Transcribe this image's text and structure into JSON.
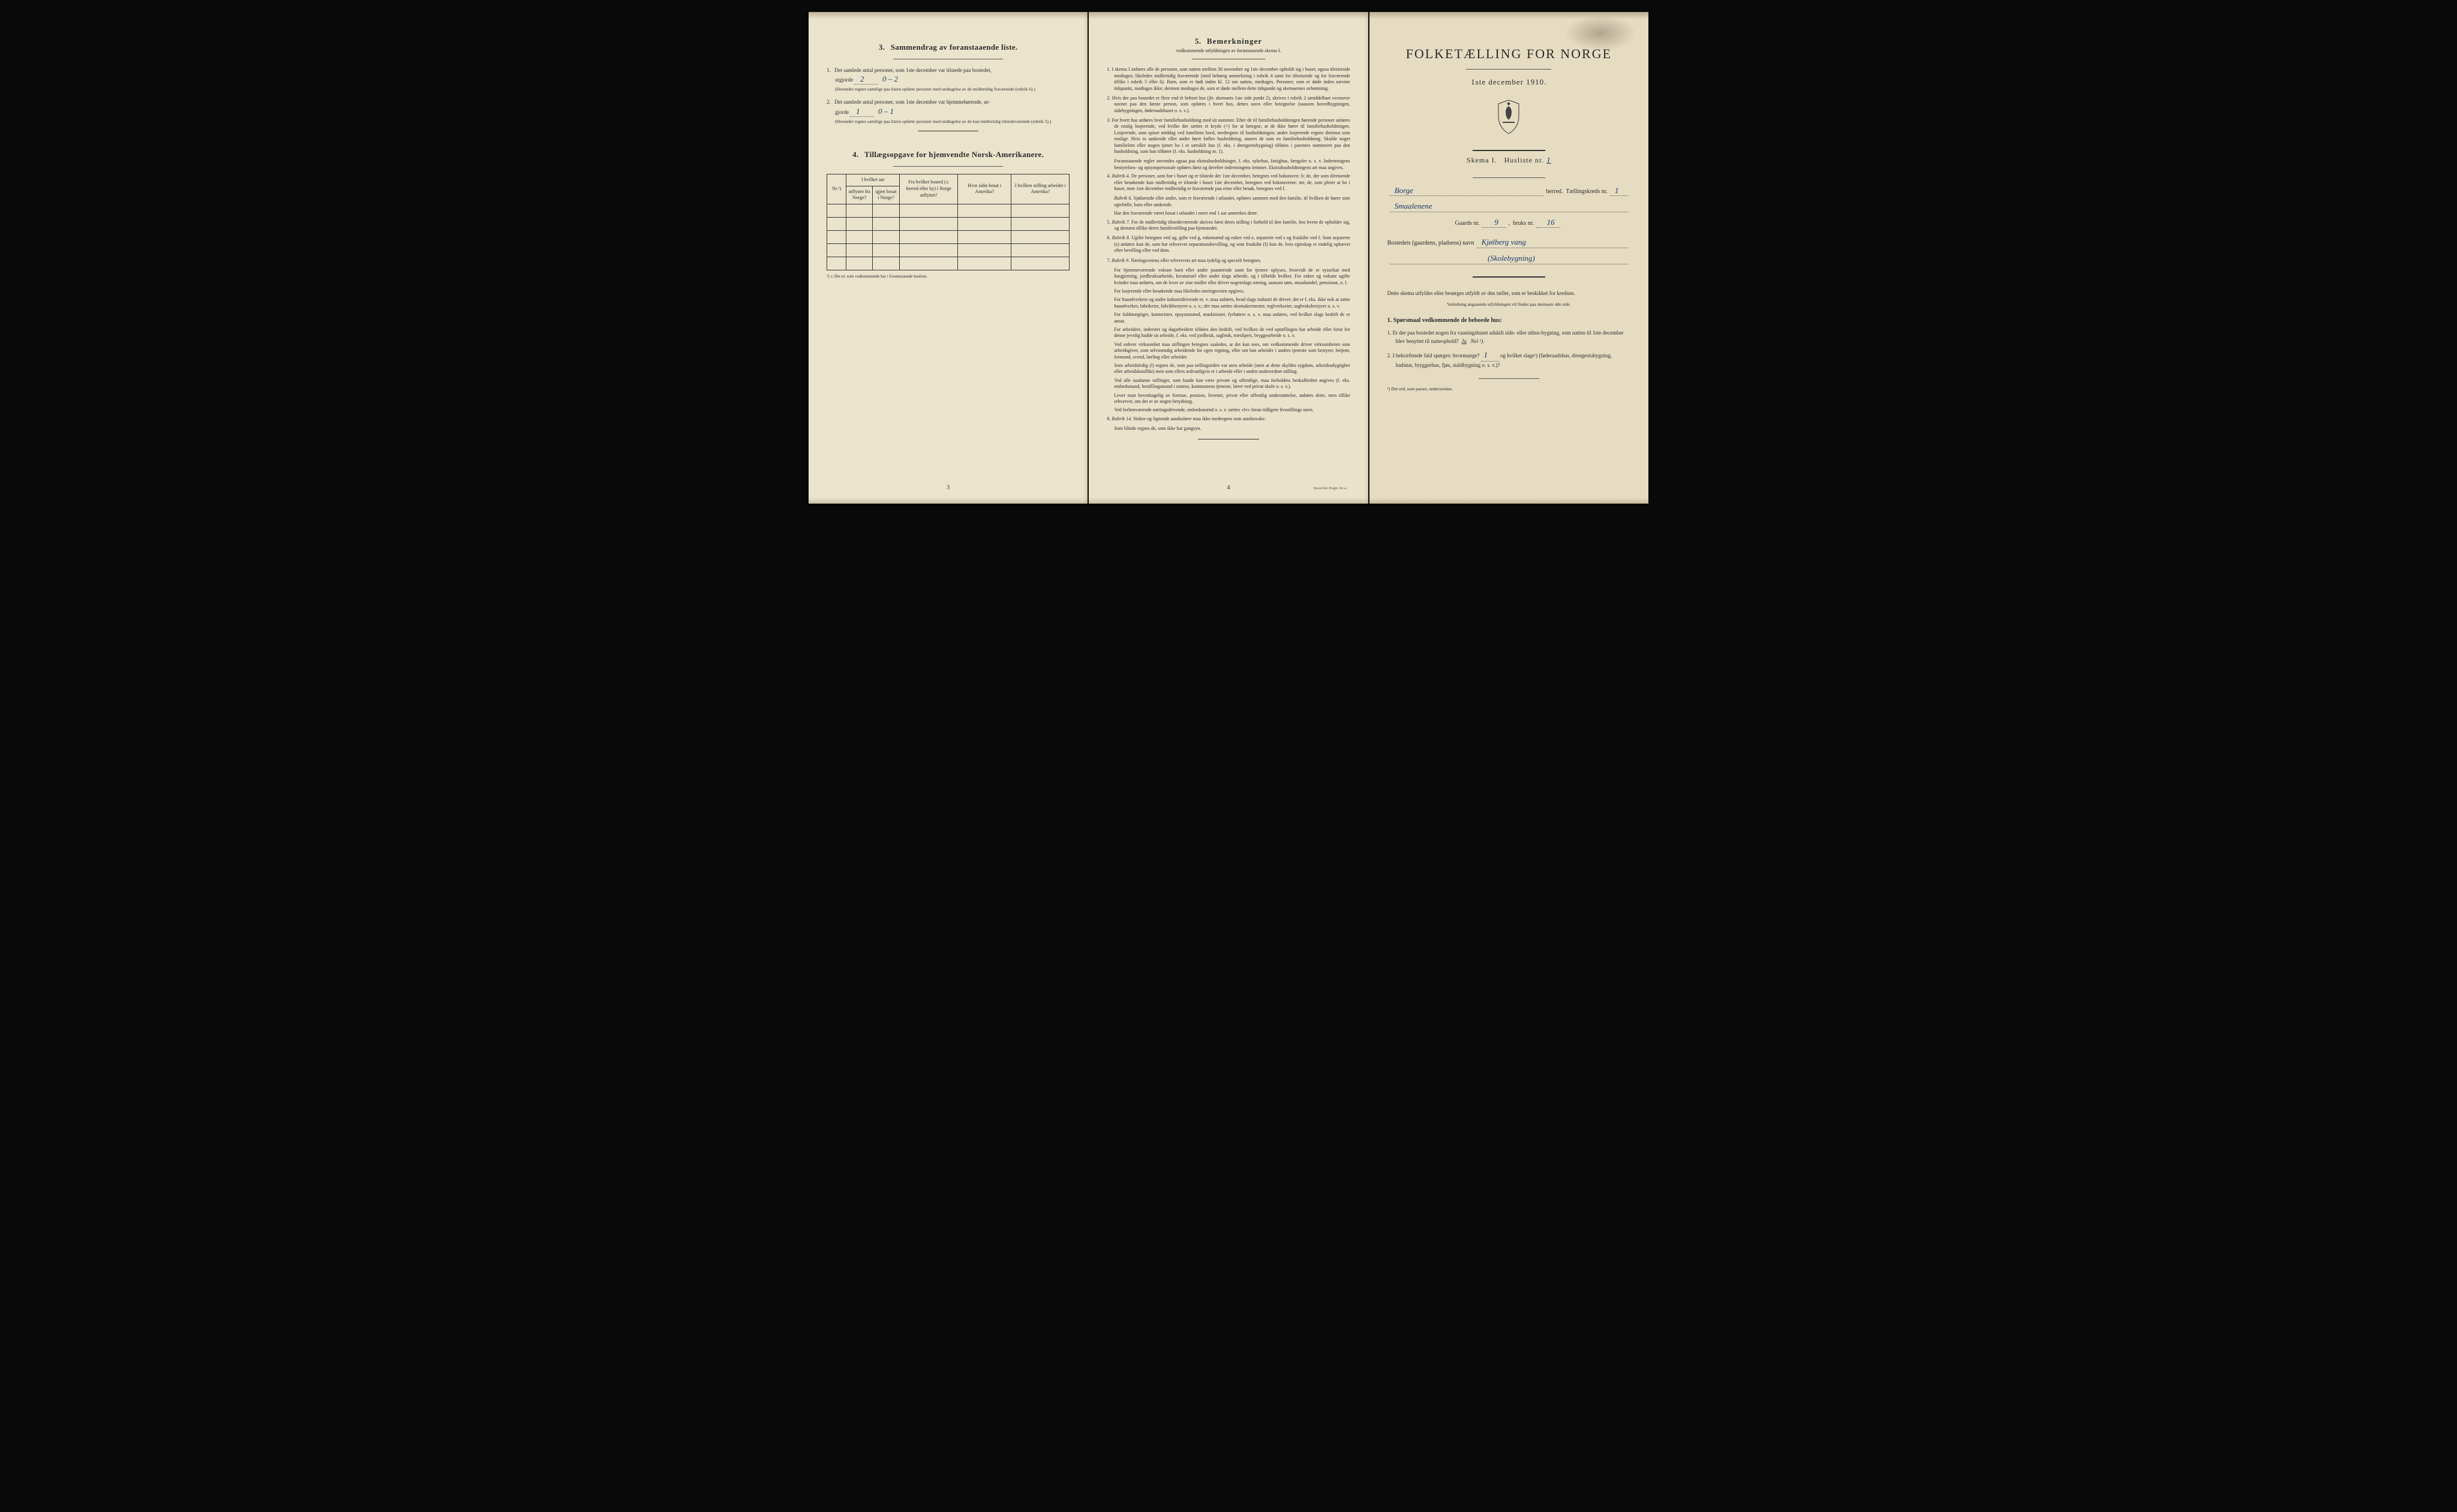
{
  "page1": {
    "section3": {
      "number": "3.",
      "title": "Sammendrag av foranstaaende liste.",
      "item1": {
        "num": "1.",
        "text_a": "Det samlede antal personer, som 1ste december var tilstede paa bostedet,",
        "text_b": "utgjorde",
        "value": "2",
        "extra": "0 – 2",
        "note": "(Herunder regnes samtlige paa listen opførte personer med undtagelse av de midlertidig fraværende (rubrik 6).)"
      },
      "item2": {
        "num": "2.",
        "text_a": "Det samlede antal personer, som 1ste december var hjemmehørende, ut-",
        "text_b": "gjorde",
        "value": "1",
        "extra": "0 – 1",
        "note": "(Herunder regnes samtlige paa listen opførte personer med undtagelse av de kun midlertidig tilstedeværende (rubrik 5).)"
      }
    },
    "section4": {
      "number": "4.",
      "title": "Tillægsopgave for hjemvendte Norsk-Amerikanere.",
      "table": {
        "header1": "Nr.¹)",
        "header2": "I hvilket aar",
        "header2a": "utflyttet fra Norge?",
        "header2b": "igjen bosat i Norge?",
        "header3": "Fra hvilket bosted (ɔ: herred eller by) i Norge utflyttet?",
        "header4": "Hvor sidst bosat i Amerika?",
        "header5": "I hvilken stilling arbeidet i Amerika?"
      },
      "footnote": "¹) ɔ: Det nr. som vedkommende har i foranstaaende husliste."
    },
    "page_num": "3"
  },
  "page2": {
    "section5": {
      "number": "5.",
      "title": "Bemerkninger",
      "subtitle": "vedkommende utfyldningen av foranstaaende skema I."
    },
    "items": [
      {
        "num": "1.",
        "text": "I skema I anføres alle de personer, som natten mellem 30 november og 1ste december opholdt sig i huset; ogsaa tilreisende medtages; likeledes midlertidig fraværende (med behørig anmerkning i rubrik 4 samt for tilreisende og for fraværende tillike i rubrik 5 eller 6). Barn, som er født inden kl. 12 om natten, medtages. Personer, som er døde inden nævnte tidspunkt, medtages ikke; derimot medtages de, som er døde mellem dette tidspunkt og skemaernes avhentning."
      },
      {
        "num": "2.",
        "text": "Hvis der paa bostedet er flere end ét beboet hus (jfr. skemaets 1ste side punkt 2), skrives i rubrik 2 umiddelbart ovenover navnet paa den første person, som opføres i hvert hus, dettes navn eller betegnelse (saasom hovedbygningen, sidebygningen, føderaadshuset o. s. v.)."
      },
      {
        "num": "3.",
        "text": "For hvert hus anføres hver familiehusholdning med sit nummer. Efter de til familiehusholdningen hørende personer anføres de enslig losjerende, ved hvilke der sættes et kryds (×) for at betegne, at de ikke hører til familiehusholdningen. Losjerende, som spiser middag ved familiens bord, medregnes til husholdningen; andre losjerende regnes derimot som enslige. Hvis to søskende eller andre fører fælles husholdning, ansees de som en familiehusholdning. Skulde noget familielem eller nogen tjener bo i et særskilt hus (f. eks. i drengestubygning) tilføies i parentes nummeret paa den husholdning, som han tilhører (f. eks. husholdning nr. 1)."
      },
      {
        "sub": true,
        "text": "Foranstaaende regler anvendes ogsaa paa ekstrahusholdninger, f. eks. sykehus, fattighus, fængsler o. s. v. Indretningens bestyrelses- og opsynspersonale opføres først og derefter indretningens lemmer. Ekstrahusholdningens art maa angives."
      },
      {
        "num": "4.",
        "rubrik": "Rubrik 4.",
        "text": "De personer, som bor i huset og er tilstede der 1ste december, betegnes ved bokstaven: b; de, der som tilreisende eller besøkende kun midlertidig er tilstede i huset 1ste december, betegnes ved bokstaverne: mt; de, som pleier at bo i huset, men 1ste december midlertidig er fraværende paa reise eller besøk, betegnes ved f."
      },
      {
        "sub": true,
        "rubrik": "Rubrik 6.",
        "text": "Sjøfarende eller andre, som er fraværende i utlandet, opføres sammen med den familie, til hvilken de hører som egtefælle, barn eller søskende."
      },
      {
        "sub": true,
        "text": "Har den fraværende været bosat i utlandet i mere end 1 aar anmerkes dette."
      },
      {
        "num": "5.",
        "rubrik": "Rubrik 7.",
        "text": "For de midlertidig tilstedeværende skrives først deres stilling i forhold til den familie, hos hvem de opholder sig, og dernæst tillike deres familiestilling paa hjemstedet."
      },
      {
        "num": "6.",
        "rubrik": "Rubrik 8.",
        "text": "Ugifte betegnes ved ug, gifte ved g, enkemænd og enker ved e, separerte ved s og fraskilte ved f. Som separerte (s) anføres kun de, som har erhvervet separationsbevilling, og som fraskilte (f) kun de, hvis egteskap er endelig ophævet efter bevilling eller ved dom."
      },
      {
        "num": "7.",
        "rubrik": "Rubrik 9.",
        "text": "Næringsveiens eller erhvervets art maa tydelig og specielt betegnes."
      },
      {
        "sub": true,
        "text": "For hjemmeværende voksne barn eller andre paarørende samt for tjenere oplyses, hvorvidt de er sysselsat med husgjerning, jordbruksarbeide, kreaturstel eller andet slags arbeide, og i tilfælde hvilket. For enker og voksne ugifte kvinder maa anføres, om de lever av sine midler eller driver nogenslags næring, saasom søm, smaahandel, pensionat, o. l."
      },
      {
        "sub": true,
        "text": "For losjerende eller besøkende maa likeledes næringsveien opgives."
      },
      {
        "sub": true,
        "text": "For haandverkere og andre industridrivende m. v. maa anføres, hvad slags industri de driver; det er f. eks. ikke nok at sætte haandverker, fabrikeier, fabrikbestyrer o. s. v.; der maa sættes skomakermester, teglverkseier, sagbruksbestyrer o. s. v."
      },
      {
        "sub": true,
        "text": "For fuldmægtiger, kontorister, opsynsmænd, maskinister, fyrbøtere o. s. v. maa anføres, ved hvilket slags bedrift de er ansat."
      },
      {
        "sub": true,
        "text": "For arbeidere, inderster og dagarbeidere tilføies den bedrift, ved hvilken de ved optællingen har arbeide eller forut for denne jevnlig hadde sit arbeide, f. eks. ved jordbruk, sagbruk, træsliperi, bryggearbeide o. s. v."
      },
      {
        "sub": true,
        "text": "Ved enhver virksomhet maa stillingen betegnes saaledes, at det kan sees, om vedkommende driver virksomheten som arbeidsgiver, som selvstændig arbeidende for egen regning, eller om han arbeider i andres tjeneste som bestyrer, betjent, formand, svend, lærling eller arbeider."
      },
      {
        "sub": true,
        "text": "Som arbeidsledig (l) regnes de, som paa tællingstiden var uten arbeide (uten at dette skyldes sygdom, arbeidsudygtighet eller arbeidskonflikt) men som ellers sedvanligvis er i arbeide eller i anden underordnet stilling."
      },
      {
        "sub": true,
        "text": "Ved alle saadanne stillinger, som baade kan være private og offentlige, maa forholdets beskaffenhet angives (f. eks. embedsmand, bestillingsmand i statens, kommunens tjeneste, lærer ved privat skole o. s. v.)."
      },
      {
        "sub": true,
        "text": "Lever man hovedsagelig av formue, pension, livrente, privat eller offentlig understøttelse, anføres dette, men tillike erhvervet, om det er av nogen betydning."
      },
      {
        "sub": true,
        "text": "Ved forhenværende næringsdrivende, embedsmænd o. s. v. sættes «fv» foran tidligere livsstillings navn."
      },
      {
        "num": "8.",
        "rubrik": "Rubrik 14.",
        "text": "Sinker og lignende aandssløve maa ikke medregnes som aandssvake."
      },
      {
        "sub": true,
        "text": "Som blinde regnes de, som ikke har gangsyn."
      }
    ],
    "page_num": "4",
    "printer": "Steen'ske Bogtr. Kr.a."
  },
  "page3": {
    "title": "FOLKETÆLLING FOR NORGE",
    "date": "1ste december 1910.",
    "skema": "Skema I.",
    "husliste": "Husliste nr.",
    "husliste_val": "1",
    "herred_label": "herred.",
    "herred_val": "Borge",
    "krets_label": "Tællingskreds nr.",
    "krets_val": "1",
    "amt_val": "Smaalenene",
    "gaards_label": "Gaards nr.",
    "gaards_val": "9",
    "bruks_label": "bruks nr.",
    "bruks_val": "16",
    "bosted_label": "Bostedets (gaardens, pladsens) navn",
    "bosted_val": "Kjølberg vang",
    "bosted_extra": "(Skolebygning)",
    "instruction": "Dette skema utfyldes eller besørges utfyldt av den tæller, som er beskikket for kredsen.",
    "instruction_small": "Veiledning angaaende utfyldningen vil findes paa skemaets 4de side.",
    "q_title": "1. Spørsmaal vedkommende de beboede hus:",
    "q1": {
      "num": "1.",
      "text": "Er der paa bostedet nogen fra vaaningshuset adskilt side- eller uthus-bygning, som natten til 1ste december blev benyttet til natteophold?",
      "ja": "Ja",
      "nei": "Nei ¹)."
    },
    "q2": {
      "num": "2.",
      "text_a": "I bekræftende fald spørges: hvormange?",
      "val": "1",
      "text_b": "og hvilket slags¹) (føderaadshus, drengestubygning, badstue, bryggerhus, fjøs, staldbygning o. s. v.)?"
    },
    "footnote": "¹) Det ord, som passer, understrekes."
  }
}
